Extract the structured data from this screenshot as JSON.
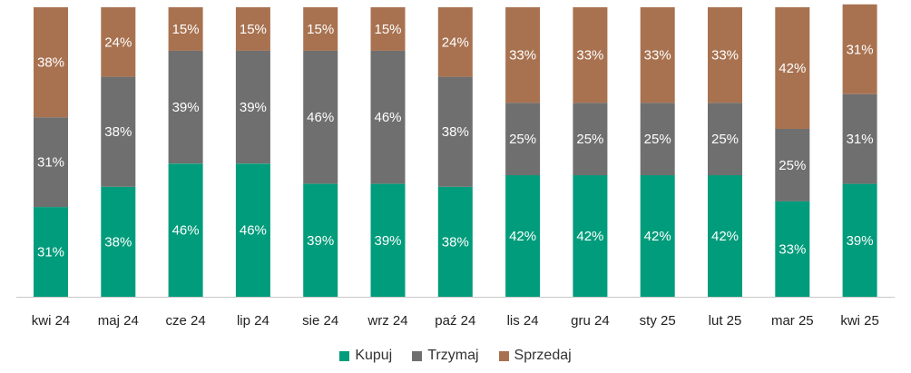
{
  "chart_data": {
    "type": "bar",
    "stacked": true,
    "percent_stacked": true,
    "categories": [
      "kwi 24",
      "maj 24",
      "cze 24",
      "lip 24",
      "sie 24",
      "wrz 24",
      "paź 24",
      "lis 24",
      "gru 24",
      "sty 25",
      "lut 25",
      "mar 25",
      "kwi 25"
    ],
    "series": [
      {
        "name": "Kupuj",
        "color": "#009c7b",
        "values": [
          31,
          38,
          46,
          46,
          39,
          39,
          38,
          42,
          42,
          42,
          42,
          33,
          39
        ]
      },
      {
        "name": "Trzymaj",
        "color": "#6f6f6f",
        "values": [
          31,
          38,
          39,
          39,
          46,
          46,
          38,
          25,
          25,
          25,
          25,
          25,
          31
        ]
      },
      {
        "name": "Sprzedaj",
        "color": "#a87250",
        "values": [
          38,
          24,
          15,
          15,
          15,
          15,
          24,
          33,
          33,
          33,
          33,
          42,
          31
        ]
      }
    ],
    "value_suffix": "%",
    "ylim": [
      0,
      100
    ],
    "grid": false,
    "legend_position": "bottom"
  }
}
